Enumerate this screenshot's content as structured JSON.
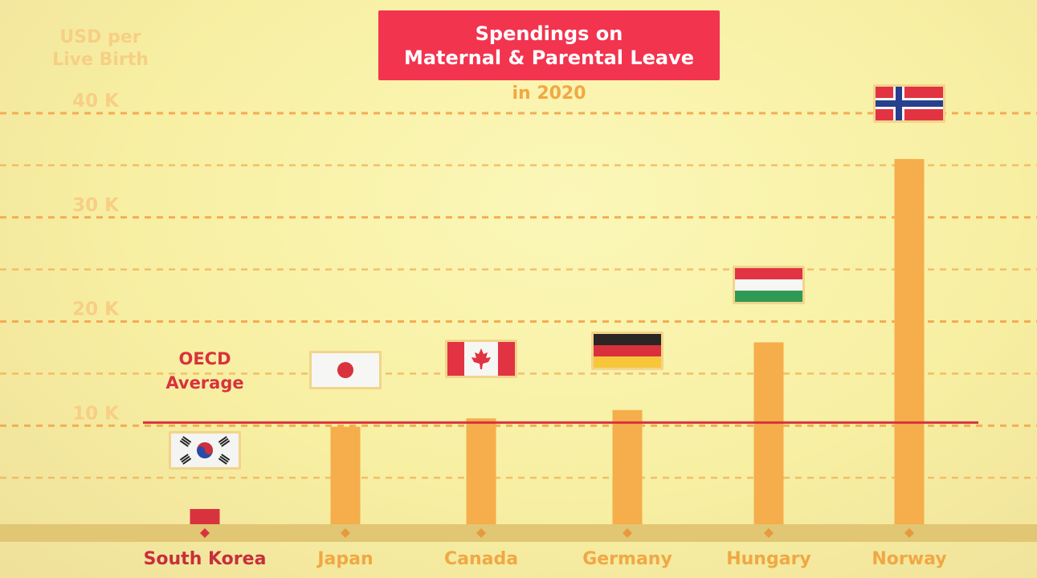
{
  "title": {
    "line1": "Spendings on",
    "line2": "Maternal & Parental Leave"
  },
  "subtitle": "in 2020",
  "y_axis_label": {
    "line1": "USD per",
    "line2": "Live Birth"
  },
  "colors": {
    "title_bg": "#f2344f",
    "bar": "#f5ae4b",
    "highlight_bar": "#d8323f",
    "oecd_line": "#d8323f",
    "grid": "#f3a94f",
    "tick_label": "#f7cf84",
    "category_label": "#f0a844",
    "highlight_label": "#c72f3c",
    "baseline": "#e1c674"
  },
  "oecd": {
    "label_line1": "OECD",
    "label_line2": "Average",
    "value": 10300
  },
  "chart_data": {
    "type": "bar",
    "title": "Spendings on Maternal & Parental Leave",
    "subtitle": "in 2020",
    "ylabel": "USD per Live Birth",
    "xlabel": "",
    "categories": [
      "South Korea",
      "Japan",
      "Canada",
      "Germany",
      "Hungary",
      "Norway"
    ],
    "values": [
      2000,
      9900,
      10700,
      11500,
      18000,
      35600
    ],
    "highlight": "South Korea",
    "flags": [
      "flag-south-korea-icon",
      "flag-japan-icon",
      "flag-canada-icon",
      "flag-germany-icon",
      "flag-hungary-icon",
      "flag-norway-icon"
    ],
    "ylim": [
      0,
      40000
    ],
    "yticks": [
      10000,
      20000,
      30000,
      40000
    ],
    "ytick_labels": [
      "10 K",
      "20 K",
      "30 K",
      "40 K"
    ],
    "grid": true,
    "reference_line": {
      "name": "OECD Average",
      "value": 10300
    }
  }
}
